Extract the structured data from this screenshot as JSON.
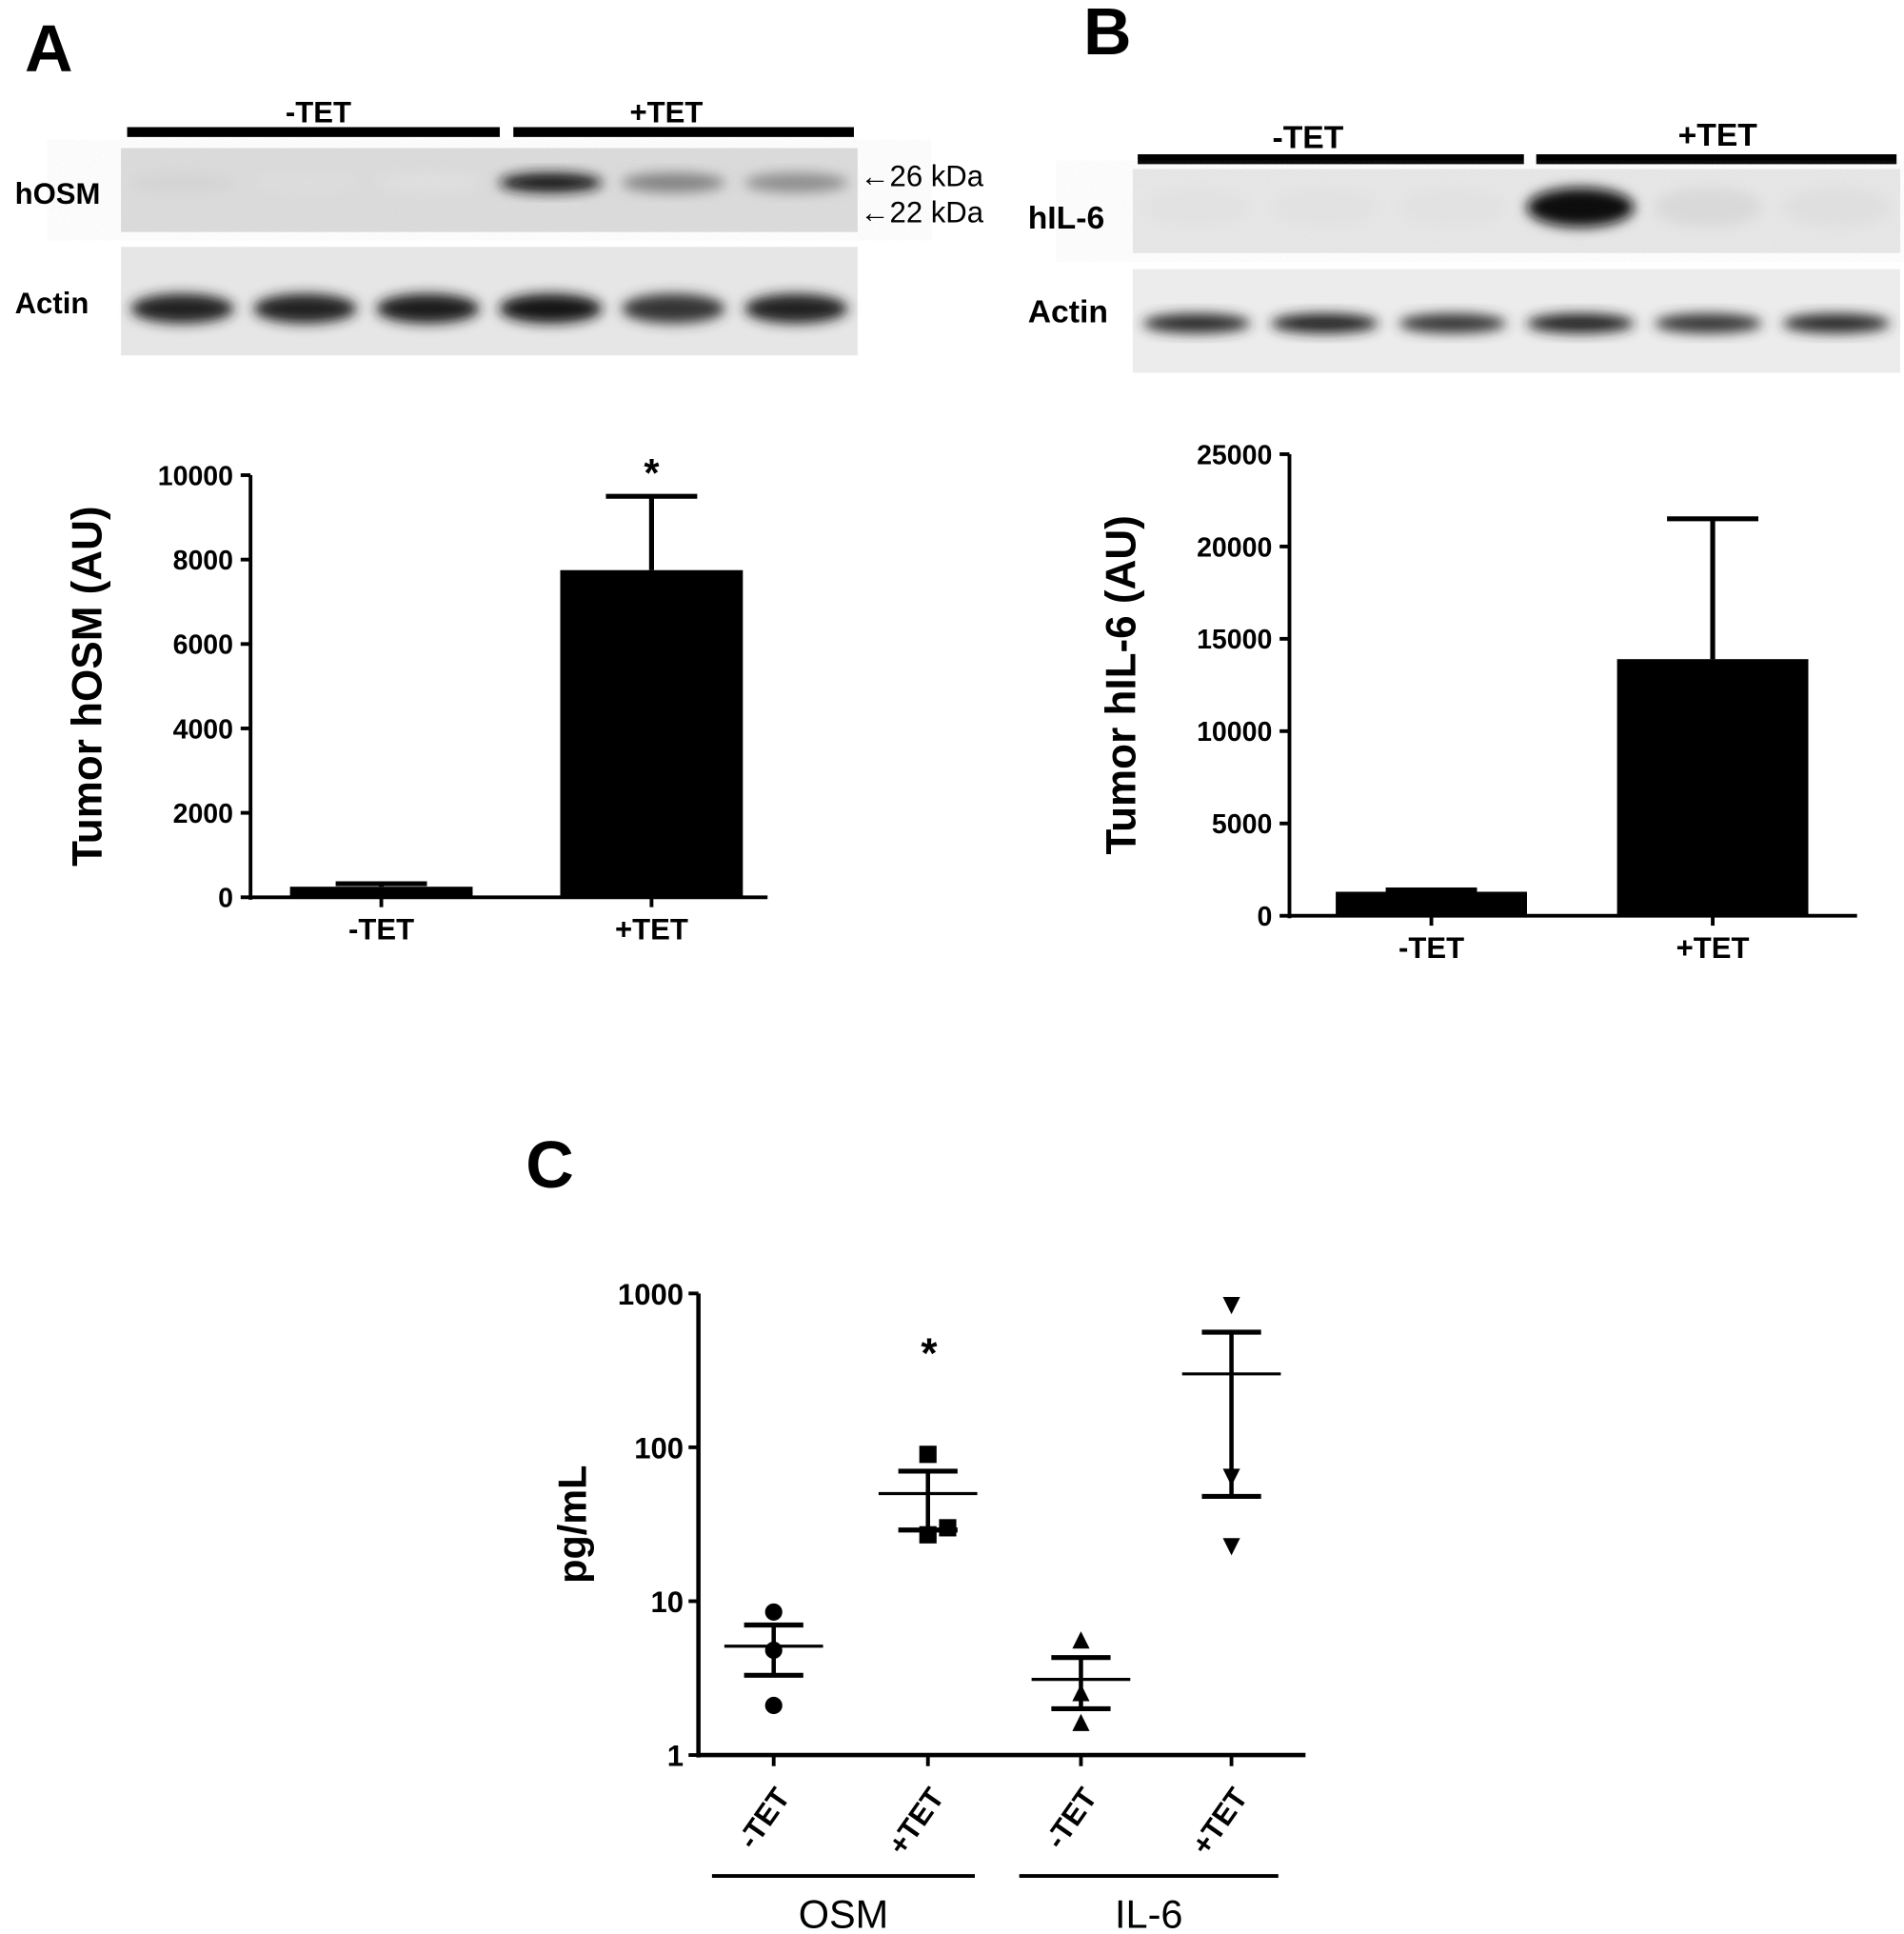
{
  "panels": {
    "A": {
      "label": "A",
      "blot": {
        "groups": [
          "-TET",
          "+TET"
        ],
        "rows": [
          "hOSM",
          "Actin"
        ],
        "markers": [
          "26 kDa",
          "22 kDa"
        ],
        "bands_hOSM": [
          0.08,
          0.04,
          0.03,
          0.95,
          0.45,
          0.4
        ],
        "bands_actin": [
          0.9,
          0.9,
          0.92,
          0.95,
          0.8,
          0.88
        ]
      }
    },
    "B": {
      "label": "B",
      "blot": {
        "groups": [
          "-TET",
          "+TET"
        ],
        "rows": [
          "hIL-6",
          "Actin"
        ],
        "bands_hIL6": [
          0.02,
          0.02,
          0.02,
          1.0,
          0.06,
          0.03
        ],
        "bands_actin": [
          0.85,
          0.9,
          0.8,
          0.9,
          0.8,
          0.85
        ]
      }
    },
    "C": {
      "label": "C"
    }
  },
  "chart_data": [
    {
      "type": "bar",
      "panel": "A",
      "categories": [
        "-TET",
        "+TET"
      ],
      "values": [
        250,
        7750
      ],
      "error_upper": [
        320,
        9500
      ],
      "ylabel": "Tumor hOSM (AU)",
      "ylim": [
        0,
        10000
      ],
      "yticks": [
        "0",
        "2000",
        "4000",
        "6000",
        "8000",
        "10000"
      ],
      "annotations": [
        {
          "category": "+TET",
          "text": "*"
        }
      ],
      "bar_color": "#000000",
      "grid": false
    },
    {
      "type": "bar",
      "panel": "B",
      "categories": [
        "-TET",
        "+TET"
      ],
      "values": [
        1300,
        13900
      ],
      "error_upper": [
        1400,
        21500
      ],
      "ylabel": "Tumor hIL-6 (AU)",
      "ylim": [
        0,
        25000
      ],
      "yticks": [
        "0",
        "5000",
        "10000",
        "15000",
        "20000",
        "25000"
      ],
      "bar_color": "#000000",
      "grid": false
    },
    {
      "type": "scatter",
      "panel": "C",
      "yscale": "log",
      "ylabel": "pg/mL",
      "ylim": [
        1,
        1000
      ],
      "yticks": [
        "1",
        "10",
        "100",
        "1000"
      ],
      "categories": [
        "-TET",
        "+TET",
        "-TET",
        "+TET"
      ],
      "groups": [
        {
          "name": "OSM",
          "categories": [
            0,
            1
          ]
        },
        {
          "name": "IL-6",
          "categories": [
            2,
            3
          ]
        }
      ],
      "series": [
        {
          "category": "-TET",
          "group": "OSM",
          "marker": "circle",
          "points": [
            8.5,
            4.8,
            2.1
          ],
          "mean": 5.1,
          "sem": [
            3.3,
            7.0
          ]
        },
        {
          "category": "+TET",
          "group": "OSM",
          "marker": "square",
          "points": [
            90,
            30,
            27
          ],
          "mean": 50,
          "sem": [
            29,
            70
          ]
        },
        {
          "category": "-TET",
          "group": "IL-6",
          "marker": "triangle-up",
          "points": [
            5.5,
            2.5,
            1.6
          ],
          "mean": 3.1,
          "sem": [
            2.0,
            4.3
          ]
        },
        {
          "category": "+TET",
          "group": "IL-6",
          "marker": "triangle-down",
          "points": [
            850,
            65,
            23
          ],
          "mean": 300,
          "sem": [
            48,
            560
          ]
        }
      ],
      "annotations": [
        {
          "category": "+TET",
          "group": "OSM",
          "text": "*"
        }
      ],
      "grid": false
    }
  ]
}
